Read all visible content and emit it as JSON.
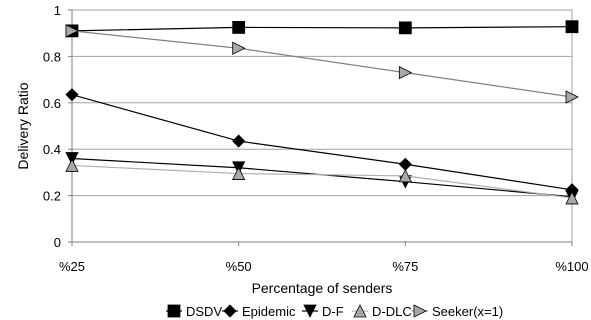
{
  "chart_data": {
    "type": "line",
    "title": "",
    "xlabel": "Percentage of senders",
    "ylabel": "Delivery Ratio",
    "categories": [
      "%25",
      "%50",
      "%75",
      "%100"
    ],
    "ylim": [
      0,
      1
    ],
    "yticks": [
      "0",
      "0.2",
      "0.4",
      "0.6",
      "0.8",
      "1"
    ],
    "grid": true,
    "legend_position": "bottom",
    "series": [
      {
        "name": "DSDV",
        "values": [
          0.91,
          0.925,
          0.923,
          0.928
        ],
        "color": "#000000",
        "marker": "square",
        "marker_fill": "#000000"
      },
      {
        "name": "Epidemic",
        "values": [
          0.635,
          0.435,
          0.335,
          0.225
        ],
        "color": "#000000",
        "marker": "diamond",
        "marker_fill": "#000000"
      },
      {
        "name": "D-F",
        "values": [
          0.36,
          0.32,
          0.26,
          0.195
        ],
        "color": "#000000",
        "marker": "triangle-down",
        "marker_fill": "#000000"
      },
      {
        "name": "D-DLC",
        "values": [
          0.33,
          0.295,
          0.285,
          0.19
        ],
        "color": "#b0b0b0",
        "marker": "triangle-up",
        "marker_fill": "#a8a8a8"
      },
      {
        "name": "Seeker(x=1)",
        "values": [
          0.91,
          0.835,
          0.73,
          0.625
        ],
        "color": "#808080",
        "marker": "triangle-right",
        "marker_fill": "#a8a8a8"
      }
    ]
  }
}
